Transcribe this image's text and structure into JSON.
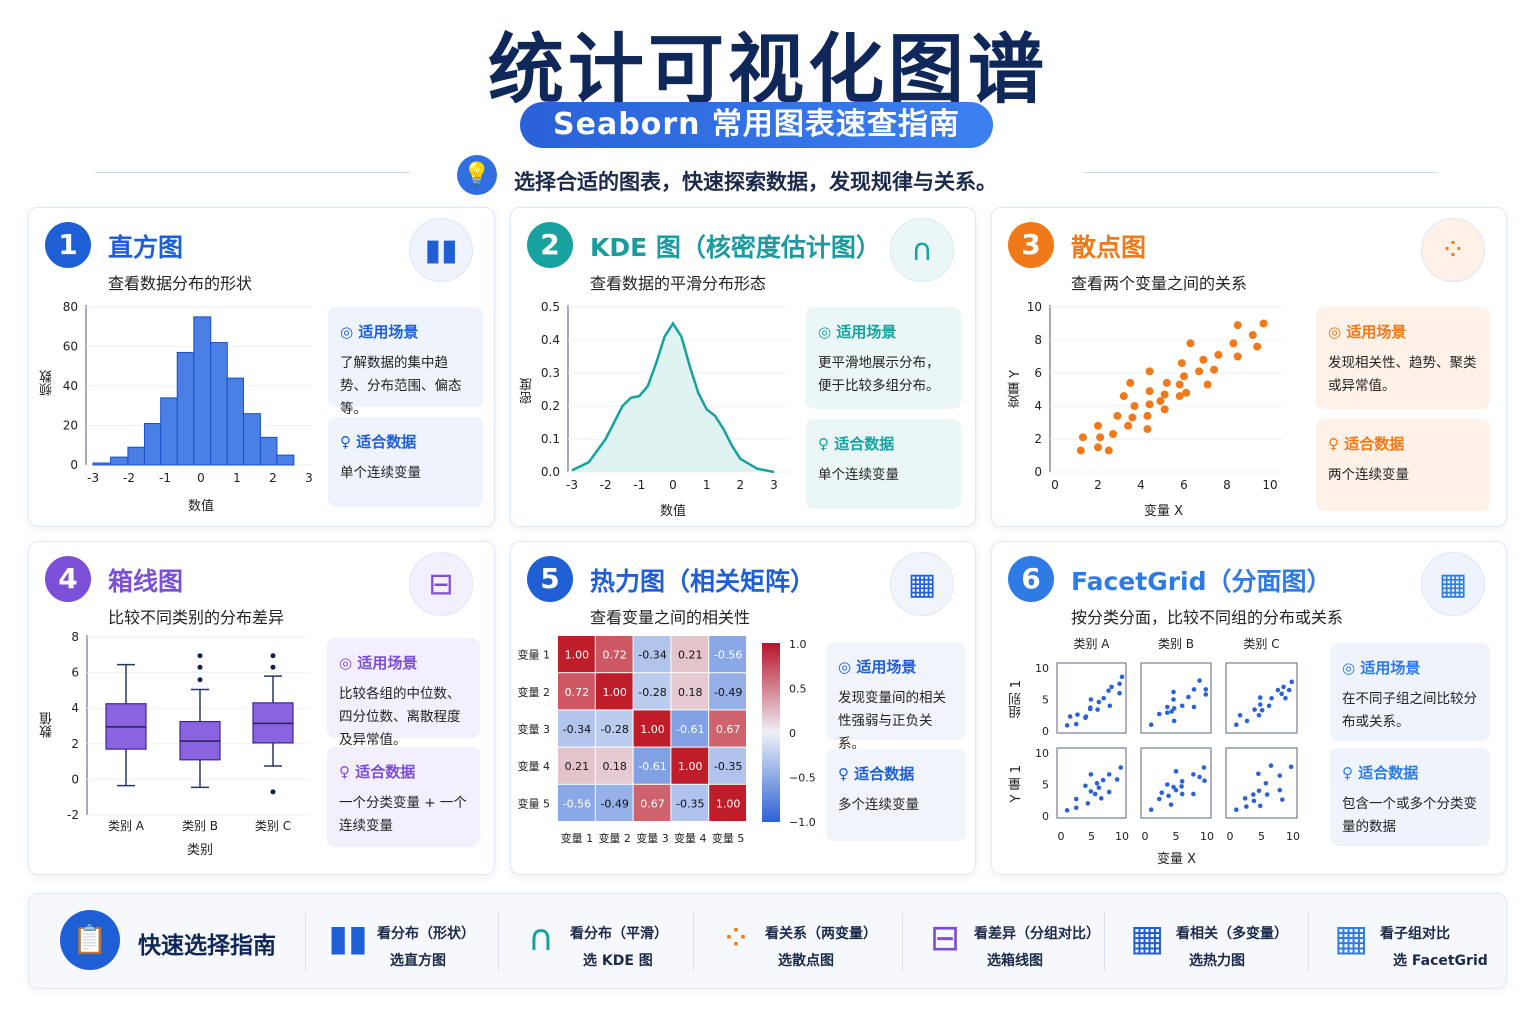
{
  "header": {
    "title": "统计可视化图谱",
    "pill": "Seaborn 常用图表速查指南",
    "tagline": "选择合适的图表，快速探索数据，发现规律与关系。",
    "tagline_icon": "lightbulb-icon"
  },
  "labels": {
    "scene": "适用场景",
    "data": "适合数据"
  },
  "colors": {
    "blue": "#1f5fd6",
    "teal": "#17a2a0",
    "orange": "#f07a1a",
    "purple": "#7b4fd6",
    "navy": "#10275a"
  },
  "cards": [
    {
      "num": "1",
      "title": "直方图",
      "subtitle": "查看数据分布的形状",
      "icon": "bar-chart-icon",
      "scene": "了解数据的集中趋势、分布范围、偏态等。",
      "data": "单个连续变量"
    },
    {
      "num": "2",
      "title": "KDE 图（核密度估计图）",
      "subtitle": "查看数据的平滑分布形态",
      "icon": "bell-curve-icon",
      "scene": "更平滑地展示分布，便于比较多组分布。",
      "data": "单个连续变量"
    },
    {
      "num": "3",
      "title": "散点图",
      "subtitle": "查看两个变量之间的关系",
      "icon": "scatter-icon",
      "scene": "发现相关性、趋势、聚类或异常值。",
      "data": "两个连续变量"
    },
    {
      "num": "4",
      "title": "箱线图",
      "subtitle": "比较不同类别的分布差异",
      "icon": "boxplot-icon",
      "scene": "比较各组的中位数、四分位数、离散程度及异常值。",
      "data": "一个分类变量 + 一个连续变量"
    },
    {
      "num": "5",
      "title": "热力图（相关矩阵）",
      "subtitle": "查看变量之间的相关性",
      "icon": "grid-icon",
      "scene": "发现变量间的相关性强弱与正负关系。",
      "data": "多个连续变量"
    },
    {
      "num": "6",
      "title": "FacetGrid（分面图）",
      "subtitle": "按分类分面，比较不同组的分布或关系",
      "icon": "facet-grid-icon",
      "scene": "在不同子组之间比较分布或关系。",
      "data": "包含一个或多个分类变量的数据"
    }
  ],
  "guide": {
    "title": "快速选择指南",
    "icon": "clipboard-icon",
    "items": [
      {
        "l1": "看分布（形状）",
        "l2": "选直方图",
        "icon": "bar-chart-icon"
      },
      {
        "l1": "看分布（平滑）",
        "l2": "选 KDE 图",
        "icon": "bell-curve-icon"
      },
      {
        "l1": "看关系（两变量）",
        "l2": "选散点图",
        "icon": "scatter-icon"
      },
      {
        "l1": "看差异（分组对比）",
        "l2": "选箱线图",
        "icon": "boxplot-icon"
      },
      {
        "l1": "看相关（多变量）",
        "l2": "选热力图",
        "icon": "grid-icon"
      },
      {
        "l1": "看子组对比",
        "l2": "选 FacetGrid",
        "icon": "facet-grid-icon"
      }
    ]
  },
  "chart_data": [
    {
      "type": "bar",
      "name": "histogram",
      "xlabel": "数值",
      "ylabel": "频数",
      "xlim": [
        -3,
        3
      ],
      "ylim": [
        0,
        80
      ],
      "xticks": [
        -3,
        -2,
        -1,
        0,
        1,
        2,
        3
      ],
      "yticks": [
        0,
        20,
        40,
        60,
        80
      ],
      "bin_edges": [
        -3.0,
        -2.51,
        -2.03,
        -1.57,
        -1.12,
        -0.66,
        -0.2,
        0.27,
        0.73,
        1.18,
        1.65,
        2.11,
        2.58
      ],
      "values": [
        1,
        4,
        9,
        21,
        34,
        57,
        75,
        62,
        44,
        26,
        14,
        5
      ],
      "color": "#4a7fe6"
    },
    {
      "type": "area",
      "name": "kde",
      "xlabel": "数值",
      "ylabel": "密度",
      "xlim": [
        -3,
        3
      ],
      "ylim": [
        0,
        0.5
      ],
      "xticks": [
        -3,
        -2,
        -1,
        0,
        1,
        2,
        3
      ],
      "yticks": [
        0.0,
        0.1,
        0.2,
        0.3,
        0.4,
        0.5
      ],
      "x": [
        -3,
        -2.5,
        -2,
        -1.75,
        -1.5,
        -1.25,
        -1,
        -0.75,
        -0.5,
        -0.25,
        0,
        0.25,
        0.5,
        0.75,
        1,
        1.25,
        1.5,
        1.75,
        2,
        2.5,
        3
      ],
      "y": [
        0.005,
        0.03,
        0.1,
        0.15,
        0.2,
        0.225,
        0.23,
        0.26,
        0.33,
        0.41,
        0.45,
        0.41,
        0.32,
        0.24,
        0.19,
        0.17,
        0.13,
        0.08,
        0.04,
        0.01,
        0.0
      ],
      "color": "#17a2a0"
    },
    {
      "type": "scatter",
      "name": "scatter",
      "xlabel": "变量 X",
      "ylabel": "变量 Y",
      "xlim": [
        0,
        10
      ],
      "ylim": [
        0,
        10
      ],
      "xticks": [
        0,
        2,
        4,
        6,
        8,
        10
      ],
      "yticks": [
        0,
        2,
        4,
        6,
        8,
        10
      ],
      "color": "#f07a1a",
      "points": [
        [
          1.2,
          1.3
        ],
        [
          1.3,
          2.1
        ],
        [
          2.0,
          1.5
        ],
        [
          2.0,
          2.8
        ],
        [
          2.1,
          2.1
        ],
        [
          2.5,
          1.3
        ],
        [
          2.7,
          2.3
        ],
        [
          2.9,
          3.4
        ],
        [
          3.2,
          4.6
        ],
        [
          3.4,
          2.8
        ],
        [
          3.5,
          5.4
        ],
        [
          3.6,
          3.3
        ],
        [
          3.7,
          4.0
        ],
        [
          4.3,
          3.4
        ],
        [
          4.3,
          2.6
        ],
        [
          4.4,
          6.1
        ],
        [
          4.4,
          4.9
        ],
        [
          4.4,
          4.1
        ],
        [
          4.9,
          4.3
        ],
        [
          5.1,
          4.7
        ],
        [
          5.1,
          3.8
        ],
        [
          5.2,
          5.4
        ],
        [
          5.8,
          5.3
        ],
        [
          5.8,
          4.6
        ],
        [
          5.9,
          6.6
        ],
        [
          6.0,
          5.8
        ],
        [
          6.1,
          4.8
        ],
        [
          6.3,
          7.8
        ],
        [
          6.7,
          6.1
        ],
        [
          6.9,
          6.8
        ],
        [
          7.1,
          5.3
        ],
        [
          7.4,
          6.2
        ],
        [
          7.6,
          7.1
        ],
        [
          8.3,
          7.8
        ],
        [
          8.5,
          8.9
        ],
        [
          8.5,
          7.0
        ],
        [
          9.2,
          8.3
        ],
        [
          9.4,
          7.6
        ],
        [
          9.7,
          9.0
        ]
      ]
    },
    {
      "type": "box",
      "name": "boxplot",
      "xlabel": "类别",
      "ylabel": "数值",
      "ylim": [
        -2,
        8
      ],
      "yticks": [
        -2,
        0,
        2,
        4,
        6,
        8
      ],
      "color": "#8a63e0",
      "categories": [
        "类别 A",
        "类别 B",
        "类别 C"
      ],
      "boxes": [
        {
          "min": -0.35,
          "q1": 1.7,
          "median": 2.95,
          "q3": 4.25,
          "max": 6.45,
          "outliers": []
        },
        {
          "min": -0.45,
          "q1": 1.1,
          "median": 2.15,
          "q3": 3.25,
          "max": 5.05,
          "outliers": [
            5.6,
            6.3,
            6.95
          ]
        },
        {
          "min": 0.75,
          "q1": 2.05,
          "median": 3.15,
          "q3": 4.3,
          "max": 5.8,
          "outliers": [
            6.3,
            6.95,
            -0.7
          ]
        }
      ]
    },
    {
      "type": "heatmap",
      "name": "correlation",
      "labels": [
        "变量 1",
        "变量 2",
        "变量 3",
        "变量 4",
        "变量 5"
      ],
      "vmin": -1,
      "vmax": 1,
      "colorbar_ticks": [
        "1.0",
        "0.5",
        "0",
        "−0.5",
        "−1.0"
      ],
      "values": [
        [
          1.0,
          0.72,
          -0.34,
          0.21,
          -0.56
        ],
        [
          0.72,
          1.0,
          -0.28,
          0.18,
          -0.49
        ],
        [
          -0.34,
          -0.28,
          1.0,
          -0.61,
          0.67
        ],
        [
          0.21,
          0.18,
          -0.61,
          1.0,
          -0.35
        ],
        [
          -0.56,
          -0.49,
          0.67,
          -0.35,
          1.0
        ]
      ]
    },
    {
      "type": "scatter",
      "name": "facetgrid",
      "xlabel": "变量 X",
      "col_labels": [
        "类别 A",
        "类别 B",
        "类别 C"
      ],
      "row_labels": [
        "组别 1",
        "Y 量 1"
      ],
      "xlim": [
        0,
        10
      ],
      "ylim": [
        0,
        10
      ],
      "xticks": [
        0,
        5,
        10
      ],
      "yticks": [
        0,
        5,
        10
      ],
      "color": "#2a62d8",
      "panels": [
        [
          [
            1,
            0.9
          ],
          [
            1.5,
            2.3
          ],
          [
            2.5,
            1.1
          ],
          [
            2.7,
            2.6
          ],
          [
            4,
            2.1
          ],
          [
            4.1,
            2.3
          ],
          [
            4.8,
            3.5
          ],
          [
            4.8,
            3.7
          ],
          [
            4.9,
            5
          ],
          [
            6,
            3.4
          ],
          [
            6.2,
            4.6
          ],
          [
            7,
            5.2
          ],
          [
            7.8,
            6.4
          ],
          [
            8,
            4
          ],
          [
            8.3,
            7
          ],
          [
            9.6,
            6
          ],
          [
            9.6,
            7.5
          ],
          [
            10,
            8.6
          ]
        ],
        [
          [
            1,
            1
          ],
          [
            2.3,
            2.7
          ],
          [
            3.6,
            3.8
          ],
          [
            3.6,
            2.9
          ],
          [
            4.3,
            3.1
          ],
          [
            4.6,
            6.2
          ],
          [
            4.6,
            5
          ],
          [
            4.7,
            3.6
          ],
          [
            4.7,
            1.6
          ],
          [
            6,
            4
          ],
          [
            7,
            5.4
          ],
          [
            7.9,
            6.6
          ],
          [
            7.9,
            3.8
          ],
          [
            8.8,
            8
          ],
          [
            9.8,
            6.6
          ],
          [
            9.8,
            5.8
          ]
        ],
        [
          [
            1,
            1
          ],
          [
            1.6,
            2.5
          ],
          [
            2.7,
            1.6
          ],
          [
            3.9,
            3.4
          ],
          [
            4.6,
            2.5
          ],
          [
            4.8,
            4.2
          ],
          [
            4.8,
            5.3
          ],
          [
            5.1,
            3.3
          ],
          [
            6.2,
            4
          ],
          [
            6.6,
            5.2
          ],
          [
            7.6,
            6.5
          ],
          [
            8.2,
            5.9
          ],
          [
            8.5,
            7
          ],
          [
            8.8,
            5.2
          ],
          [
            9.4,
            6.5
          ],
          [
            9.8,
            7.8
          ]
        ],
        [
          [
            1,
            0.9
          ],
          [
            2.5,
            1.3
          ],
          [
            2.5,
            2.7
          ],
          [
            4,
            4.8
          ],
          [
            4.4,
            2
          ],
          [
            4.9,
            3.9
          ],
          [
            4.9,
            6.6
          ],
          [
            5.6,
            3.5
          ],
          [
            5.9,
            5.2
          ],
          [
            6.2,
            4.5
          ],
          [
            6.6,
            2.8
          ],
          [
            6.9,
            5.7
          ],
          [
            7.9,
            3.8
          ],
          [
            7.9,
            6.6
          ],
          [
            9.2,
            5.8
          ],
          [
            9.8,
            7.7
          ]
        ],
        [
          [
            1,
            1
          ],
          [
            2.3,
            2.7
          ],
          [
            2.7,
            3.7
          ],
          [
            3.6,
            5
          ],
          [
            3.8,
            3.2
          ],
          [
            4.2,
            1.8
          ],
          [
            4.6,
            4.6
          ],
          [
            5,
            7.1
          ],
          [
            5,
            4.1
          ],
          [
            5.9,
            4.7
          ],
          [
            6,
            5.5
          ],
          [
            6,
            3.5
          ],
          [
            7.8,
            6.6
          ],
          [
            7.8,
            3.5
          ],
          [
            8.8,
            6.2
          ],
          [
            9.5,
            7.7
          ],
          [
            9.6,
            5.6
          ]
        ],
        [
          [
            1,
            1
          ],
          [
            2.4,
            2.8
          ],
          [
            2.6,
            1.5
          ],
          [
            3.7,
            3.4
          ],
          [
            3.8,
            2.4
          ],
          [
            4.5,
            6.7
          ],
          [
            4.6,
            4
          ],
          [
            4.8,
            1.6
          ],
          [
            5.7,
            5.2
          ],
          [
            5.9,
            3.4
          ],
          [
            6.5,
            8
          ],
          [
            7.9,
            6.4
          ],
          [
            7.9,
            4.1
          ],
          [
            8.3,
            2.6
          ],
          [
            9.7,
            7.8
          ]
        ]
      ]
    }
  ]
}
